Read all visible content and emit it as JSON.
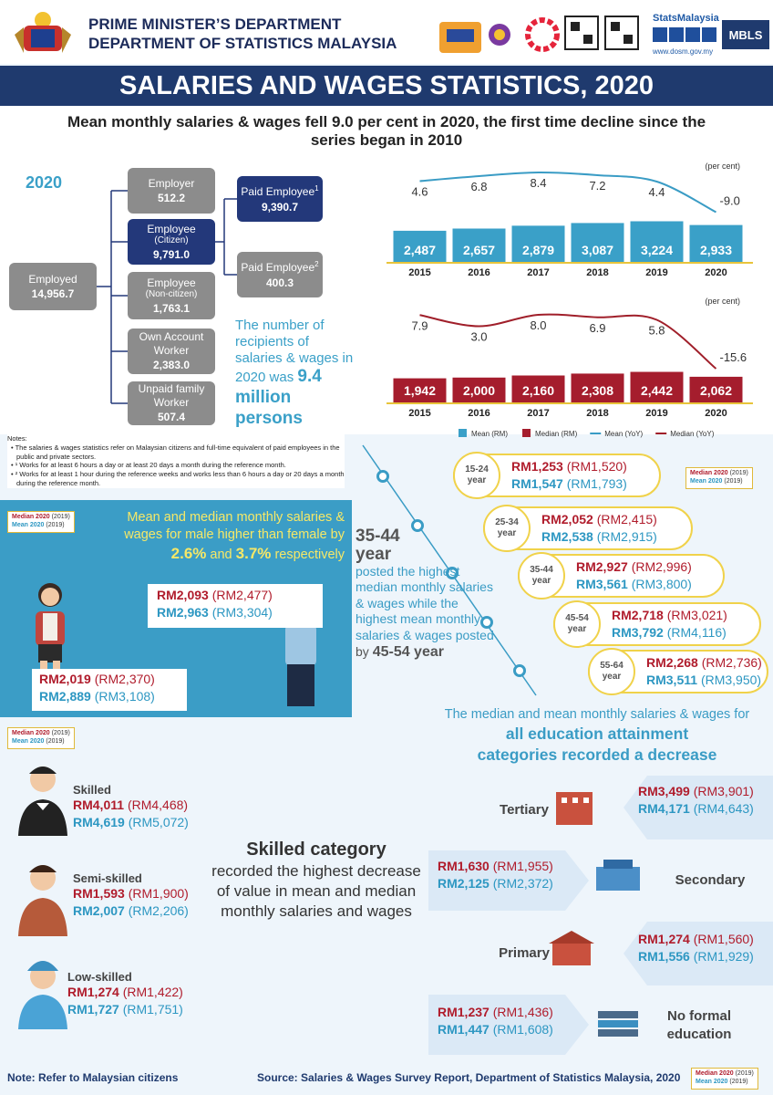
{
  "header": {
    "ministry": "PRIME MINISTER’S DEPARTMENT",
    "department": "DEPARTMENT OF STATISTICS MALAYSIA",
    "brand": "StatsMalaysia",
    "website": "www.dosm.gov.my",
    "badge": "MBLS"
  },
  "title": "SALARIES AND WAGES STATISTICS, 2020",
  "subtitle": "Mean monthly salaries & wages fell 9.0 per cent in 2020, the first time decline since the series began in 2010",
  "employment": {
    "year": "2020",
    "nodes": [
      {
        "label": "Employed",
        "value": "14,956.7"
      },
      {
        "label": "Employer",
        "value": "512.2"
      },
      {
        "label": "Employee",
        "qualifier": "(Citizen)",
        "value": "9,791.0"
      },
      {
        "label": "Employee",
        "qualifier": "(Non-citizen)",
        "value": "1,763.1"
      },
      {
        "label": "Own Account Worker",
        "value": "2,383.0"
      },
      {
        "label": "Unpaid family Worker",
        "value": "507.4"
      },
      {
        "label": "Paid Employee",
        "note": "1",
        "value": "9,390.7"
      },
      {
        "label": "Paid Employee",
        "note": "2",
        "value": "400.3"
      }
    ],
    "recipients_text": "The number of recipients of salaries & wages in 2020 was",
    "recipients_value": "9.4 million persons"
  },
  "notes": {
    "heading": "Notes:",
    "items": [
      "The salaries & wages statistics refer on Malaysian citizens and full-time equivalent of paid employees in the public and private sectors.",
      "¹ Works for at least 6 hours a day or at least 20 days a month during the reference month.",
      "² Works for at least 1 hour during the reference weeks and works less than 6 hours a day or 20 days a month during the reference month."
    ]
  },
  "chart_data": [
    {
      "type": "bar_line",
      "categories": [
        "2015",
        "2016",
        "2017",
        "2018",
        "2019",
        "2020"
      ],
      "y2_label": "(per cent)",
      "ylim": [
        0,
        3400
      ],
      "y2lim": [
        -18,
        10
      ],
      "series": [
        {
          "name": "Mean (RM)",
          "color": "#3aa0c8",
          "values": [
            2487,
            2657,
            2879,
            3087,
            3224,
            2933
          ],
          "value_labels": [
            "2,487",
            "2,657",
            "2,879",
            "3,087",
            "3,224",
            "2,933"
          ]
        },
        {
          "name": "Mean (YoY)",
          "color": "#3a9cc5",
          "axis": "y2",
          "values": [
            4.6,
            6.8,
            8.4,
            7.2,
            4.4,
            -9.0
          ],
          "value_labels": [
            "4.6",
            "6.8",
            "8.4",
            "7.2",
            "4.4",
            "-9.0"
          ]
        }
      ]
    },
    {
      "type": "bar_line",
      "categories": [
        "2015",
        "2016",
        "2017",
        "2018",
        "2019",
        "2020"
      ],
      "y2_label": "(per cent)",
      "ylim": [
        0,
        3400
      ],
      "y2lim": [
        -18,
        10
      ],
      "series": [
        {
          "name": "Median (RM)",
          "color": "#a51d2d",
          "values": [
            1942,
            2000,
            2160,
            2308,
            2442,
            2062
          ],
          "value_labels": [
            "1,942",
            "2,000",
            "2,160",
            "2,308",
            "2,442",
            "2,062"
          ]
        },
        {
          "name": "Median (YoY)",
          "color": "#a01f2a",
          "axis": "y2",
          "values": [
            7.9,
            3.0,
            8.0,
            6.9,
            5.8,
            -15.6
          ],
          "value_labels": [
            "7.9",
            "3.0",
            "8.0",
            "6.9",
            "5.8",
            "-15.6"
          ]
        }
      ]
    }
  ],
  "key": {
    "median": "Median 2020",
    "median_prev": "(2019)",
    "mean": "Mean 2020",
    "mean_prev": "(2019)"
  },
  "gender": {
    "headline": "Mean and median monthly salaries & wages for male higher than female by",
    "emphasis1": "2.6%",
    "joiner": "and",
    "emphasis2": "3.7%",
    "tail": "respectively",
    "male": {
      "median": "RM2,093",
      "median_prev": "(RM2,477)",
      "mean": "RM2,963",
      "mean_prev": "(RM3,304)"
    },
    "female": {
      "median": "RM2,019",
      "median_prev": "(RM2,370)",
      "mean": "RM2,889",
      "mean_prev": "(RM3,108)"
    }
  },
  "age": {
    "highlight": "35-44 year",
    "text": "posted the highest median monthly salaries & wages while the highest mean monthly salaries & wages posted",
    "by": "by",
    "highlight2": "45-54 year",
    "groups": [
      {
        "label": "15-24 year",
        "median": "RM1,253",
        "median_prev": "(RM1,520)",
        "mean": "RM1,547",
        "mean_prev": "(RM1,793)"
      },
      {
        "label": "25-34 year",
        "median": "RM2,052",
        "median_prev": "(RM2,415)",
        "mean": "RM2,538",
        "mean_prev": "(RM2,915)"
      },
      {
        "label": "35-44 year",
        "median": "RM2,927",
        "median_prev": "(RM2,996)",
        "mean": "RM3,561",
        "mean_prev": "(RM3,800)"
      },
      {
        "label": "45-54 year",
        "median": "RM2,718",
        "median_prev": "(RM3,021)",
        "mean": "RM3,792",
        "mean_prev": "(RM4,116)"
      },
      {
        "label": "55-64 year",
        "median": "RM2,268",
        "median_prev": "(RM2,736)",
        "mean": "RM3,511",
        "mean_prev": "(RM3,950)"
      }
    ]
  },
  "skill": {
    "headline": "Skilled category",
    "text": "recorded the highest decrease of value in mean and median monthly salaries and wages",
    "groups": [
      {
        "label": "Skilled",
        "median": "RM4,011",
        "median_prev": "(RM4,468)",
        "mean": "RM4,619",
        "mean_prev": "(RM5,072)"
      },
      {
        "label": "Semi-skilled",
        "median": "RM1,593",
        "median_prev": "(RM1,900)",
        "mean": "RM2,007",
        "mean_prev": "(RM2,206)"
      },
      {
        "label": "Low-skilled",
        "median": "RM1,274",
        "median_prev": "(RM1,422)",
        "mean": "RM1,727",
        "mean_prev": "(RM1,751)"
      }
    ]
  },
  "education": {
    "headline": "The median and mean monthly salaries & wages for",
    "emphasis": "all education attainment categories recorded a decrease",
    "groups": [
      {
        "label": "Tertiary",
        "median": "RM3,499",
        "median_prev": "(RM3,901)",
        "mean": "RM4,171",
        "mean_prev": "(RM4,643)"
      },
      {
        "label": "Secondary",
        "median": "RM1,630",
        "median_prev": "(RM1,955)",
        "mean": "RM2,125",
        "mean_prev": "(RM2,372)"
      },
      {
        "label": "Primary",
        "median": "RM1,274",
        "median_prev": "(RM1,560)",
        "mean": "RM1,556",
        "mean_prev": "(RM1,929)"
      },
      {
        "label": "No formal education",
        "median": "RM1,237",
        "median_prev": "(RM1,436)",
        "mean": "RM1,447",
        "mean_prev": "(RM1,608)"
      }
    ]
  },
  "footer": {
    "note": "Note: Refer to Malaysian citizens",
    "source": "Source: Salaries & Wages Survey Report, Department of Statistics Malaysia, 2020"
  }
}
